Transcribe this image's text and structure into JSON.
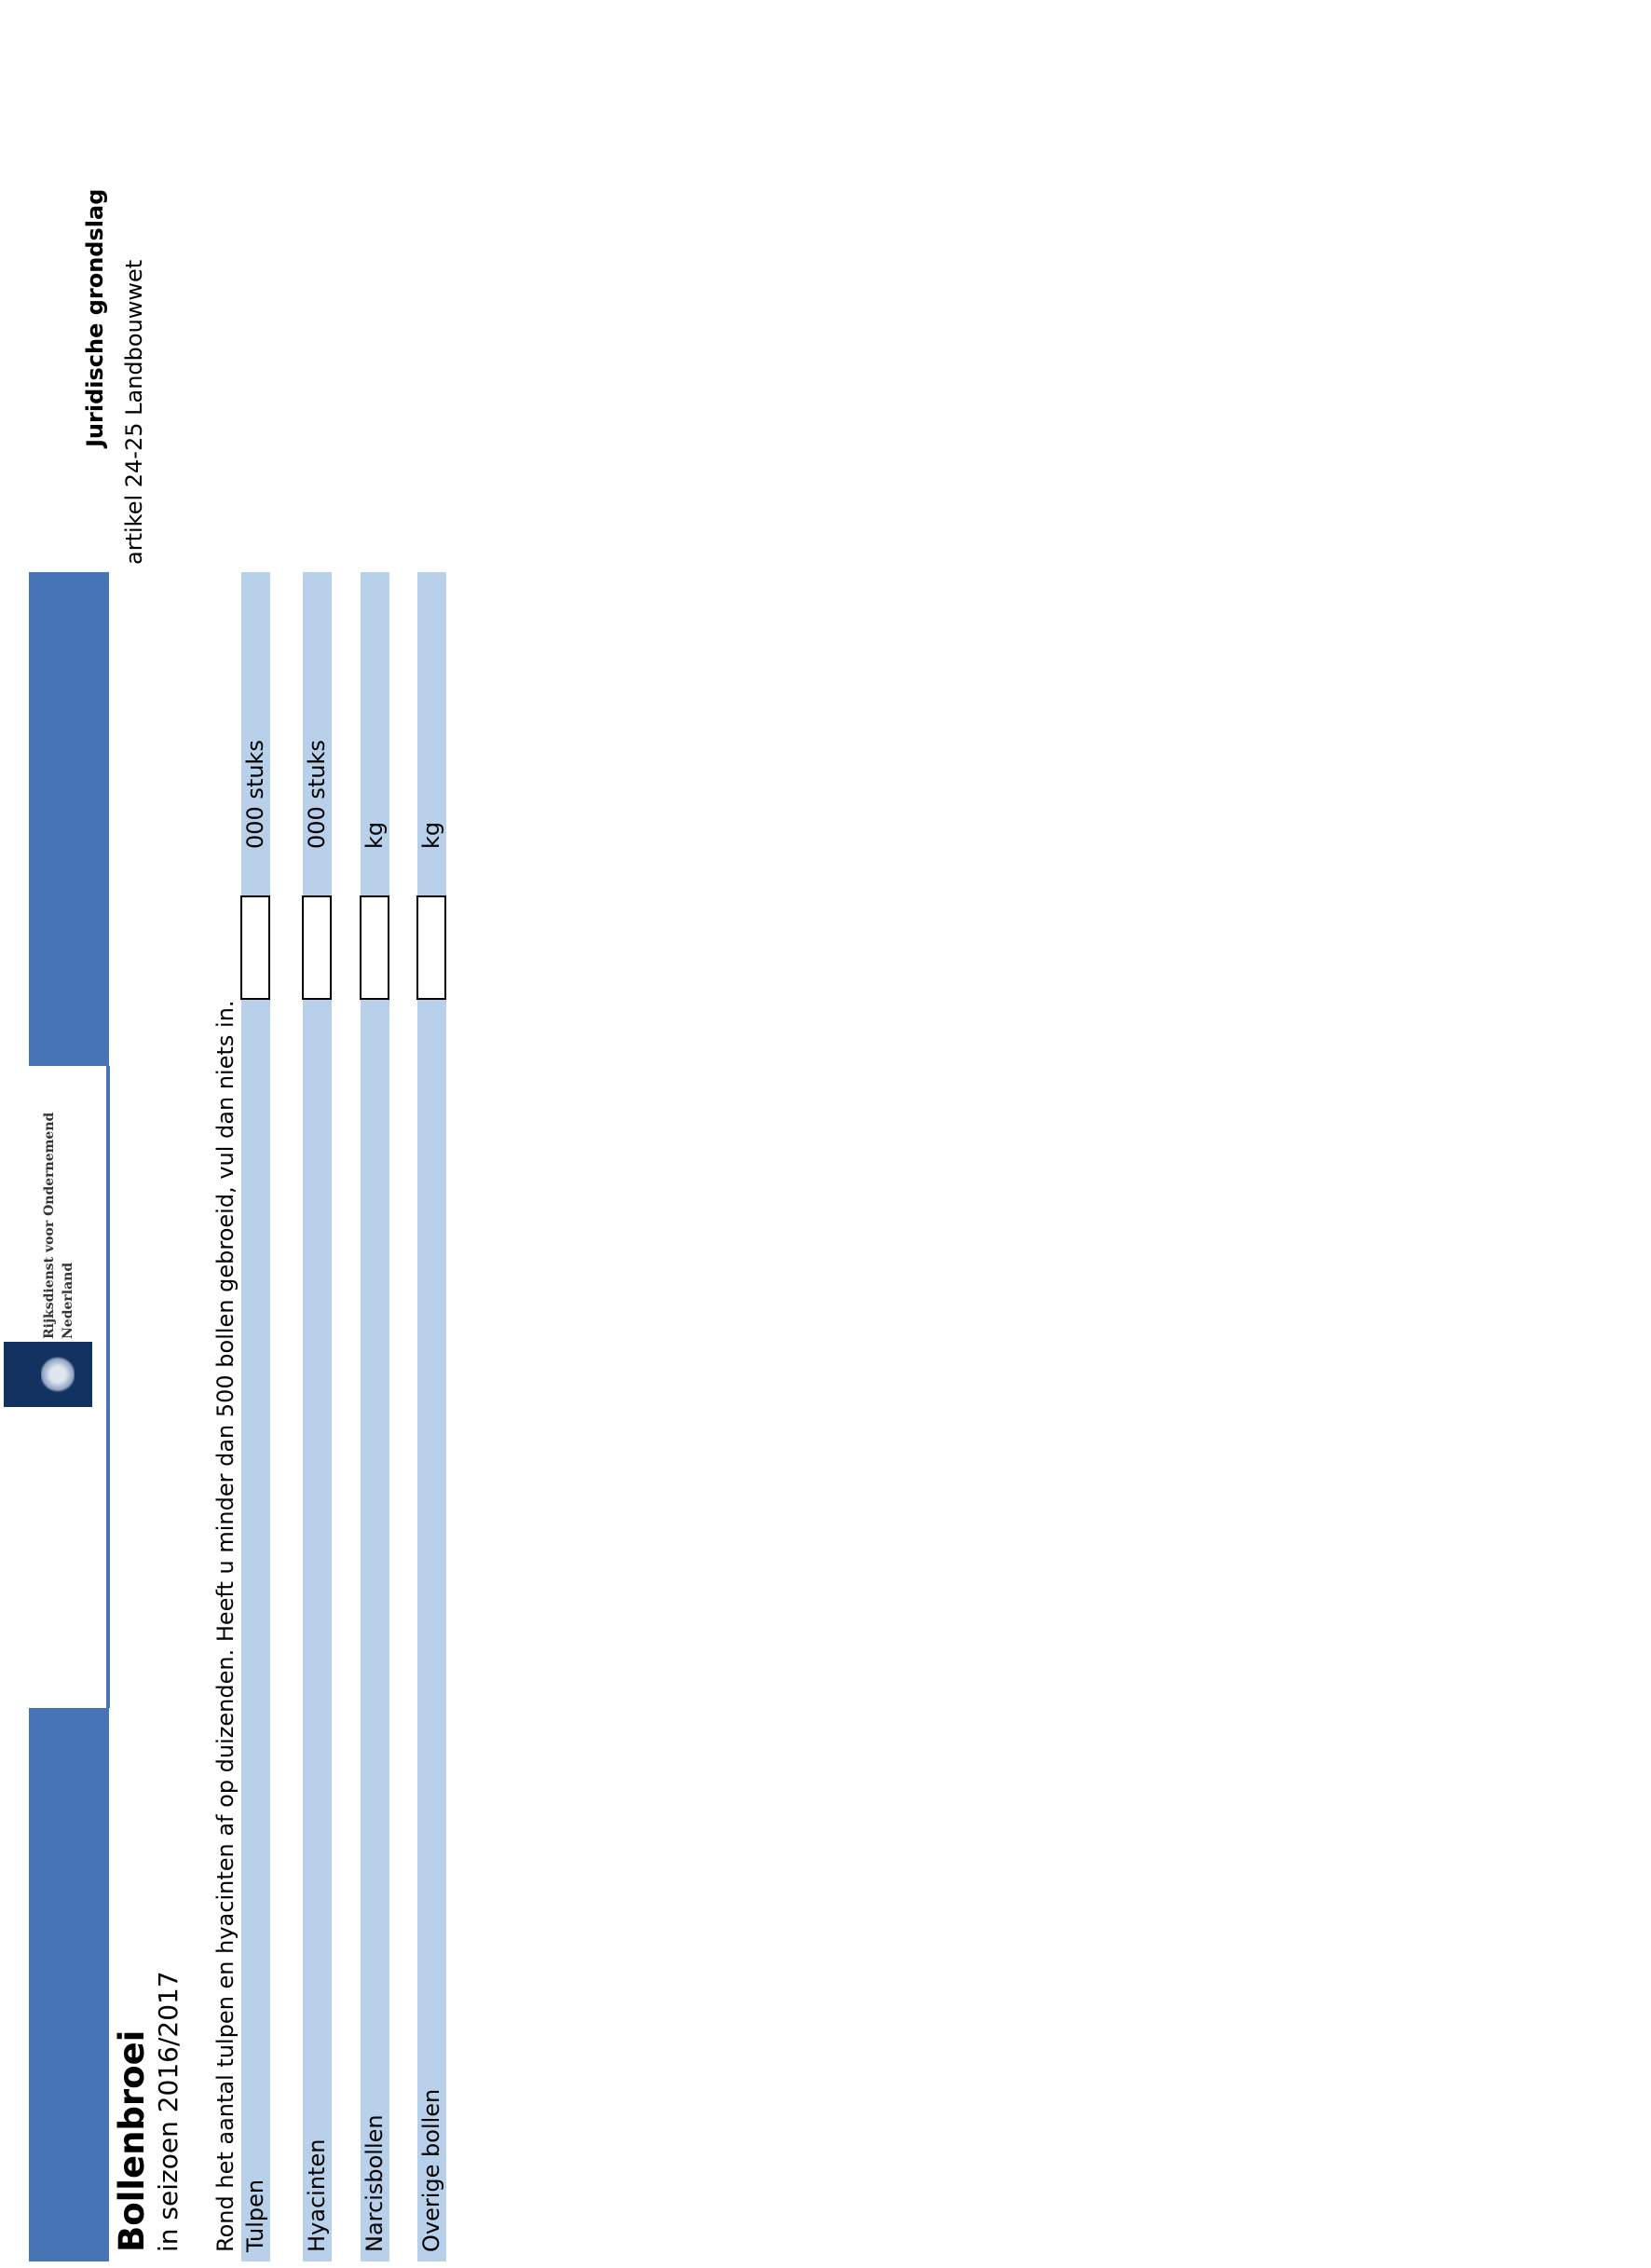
{
  "header": {
    "legal_basis_title": "Juridische grondslag",
    "legal_basis_text": "artikel 24-25 Landbouwwet",
    "logo_text_line1": "Rijksdienst voor Ondernemend",
    "logo_text_line2": "Nederland"
  },
  "form": {
    "title": "Bollenbroei",
    "subtitle": "in seizoen 2016/2017",
    "instruction": "Rond het aantal tulpen en hyacinten af op duizenden. Heeft u minder dan 500 bollen gebroeid, vul dan niets in.",
    "rows": [
      {
        "label": "Tulpen",
        "value": "",
        "unit": "000 stuks"
      },
      {
        "label": "Hyacinten",
        "value": "",
        "unit": "000 stuks"
      },
      {
        "label": "Narcisbollen",
        "value": "",
        "unit": "kg"
      },
      {
        "label": "Overige bollen",
        "value": "",
        "unit": "kg"
      }
    ]
  },
  "colors": {
    "bar": "#4674b4",
    "band": "#b8d0ea",
    "logo": "#12325f"
  }
}
